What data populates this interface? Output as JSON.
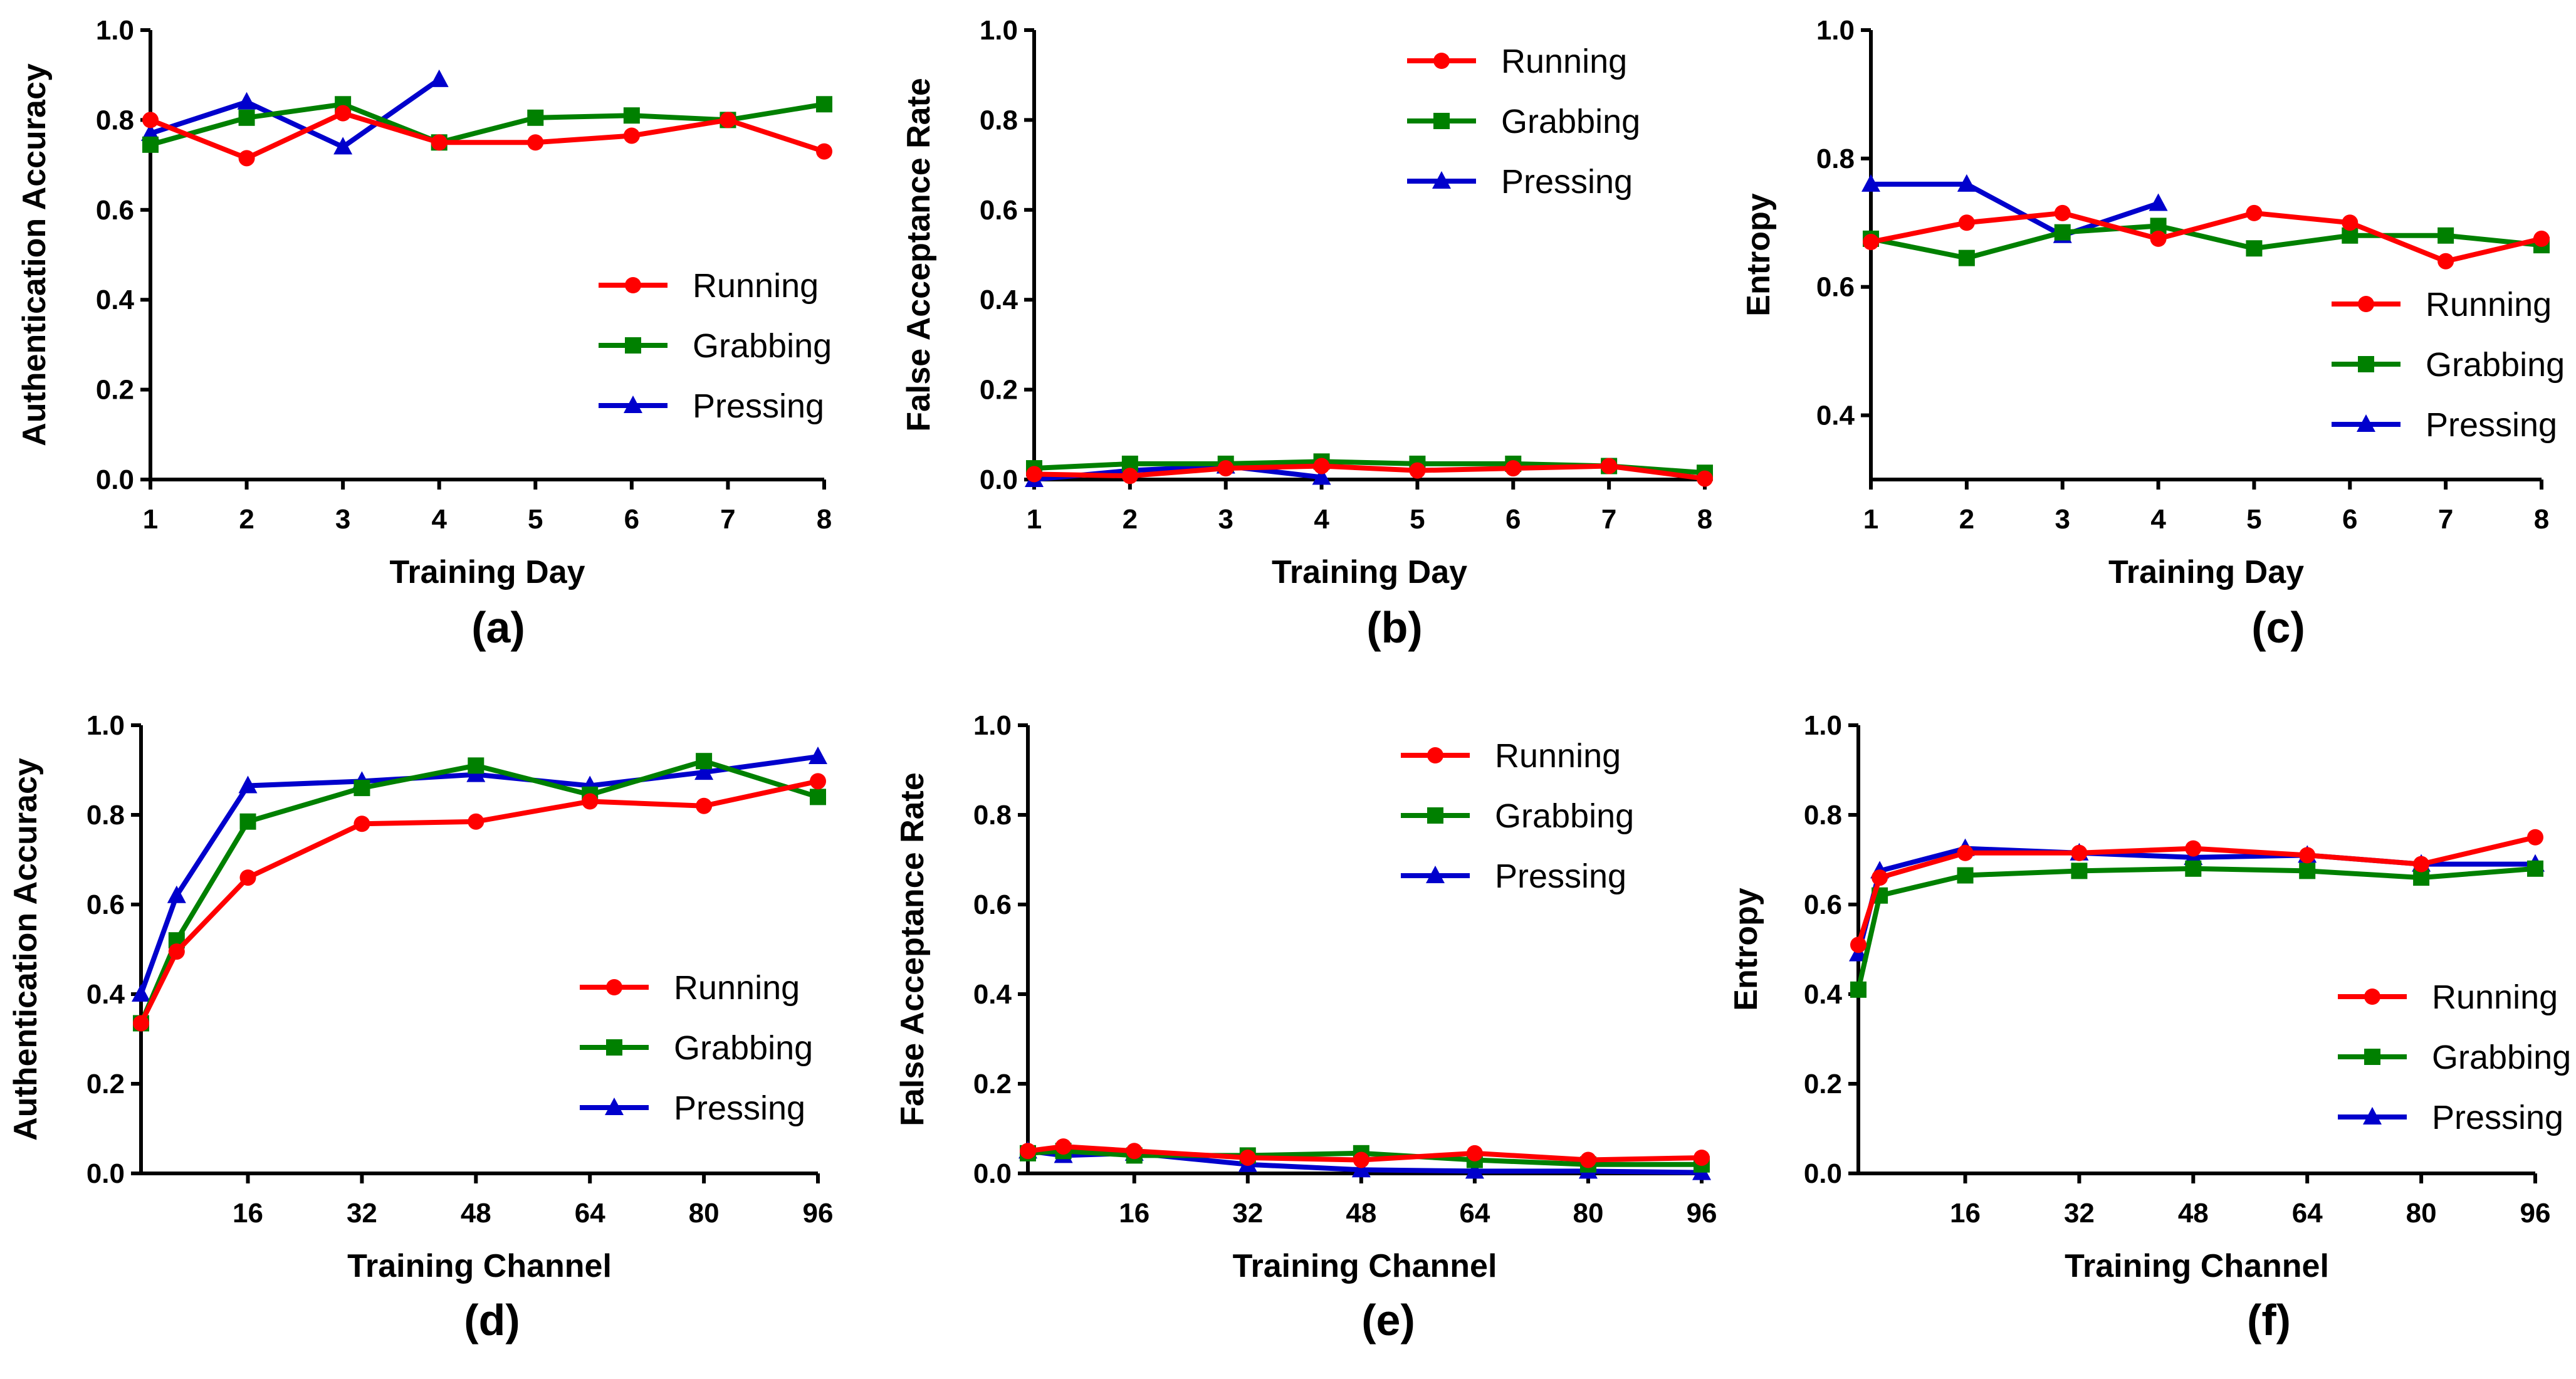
{
  "figure": {
    "series_names": [
      "Running",
      "Grabbing",
      "Pressing"
    ],
    "colors": {
      "Running": "#ff0000",
      "Grabbing": "#008000",
      "Pressing": "#0000cc"
    },
    "markers": {
      "Running": "circle",
      "Grabbing": "square",
      "Pressing": "triangle"
    }
  },
  "chart_data": [
    {
      "type": "line",
      "panel_label": "(a)",
      "xlabel": "Training Day",
      "ylabel": "Authentication Accuracy",
      "xlim": [
        1,
        8
      ],
      "ylim": [
        0,
        1
      ],
      "xticks": [
        1,
        2,
        3,
        4,
        5,
        6,
        7,
        8
      ],
      "xtick_labels": [
        "1",
        "2",
        "3",
        "4",
        "5",
        "6",
        "7",
        "8"
      ],
      "yticks": [
        0,
        0.2,
        0.4,
        0.6,
        0.8,
        1.0
      ],
      "ytick_labels": [
        "0.0",
        "0.2",
        "0.4",
        "0.6",
        "0.8",
        "1.0"
      ],
      "legend_position": "lower-right",
      "series": [
        {
          "name": "Running",
          "x": [
            1,
            2,
            3,
            4,
            5,
            6,
            7,
            8
          ],
          "values": [
            0.8,
            0.715,
            0.815,
            0.75,
            0.75,
            0.765,
            0.8,
            0.73
          ]
        },
        {
          "name": "Grabbing",
          "x": [
            1,
            2,
            3,
            4,
            5,
            6,
            7,
            8
          ],
          "values": [
            0.745,
            0.805,
            0.835,
            0.75,
            0.805,
            0.81,
            0.8,
            0.835
          ]
        },
        {
          "name": "Pressing",
          "x": [
            1,
            2,
            3,
            4
          ],
          "values": [
            0.77,
            0.84,
            0.74,
            0.89
          ]
        }
      ]
    },
    {
      "type": "line",
      "panel_label": "(b)",
      "xlabel": "Training Day",
      "ylabel": "False Acceptance Rate",
      "xlim": [
        1,
        8
      ],
      "ylim": [
        0,
        1
      ],
      "xticks": [
        1,
        2,
        3,
        4,
        5,
        6,
        7,
        8
      ],
      "xtick_labels": [
        "1",
        "2",
        "3",
        "4",
        "5",
        "6",
        "7",
        "8"
      ],
      "yticks": [
        0,
        0.2,
        0.4,
        0.6,
        0.8,
        1.0
      ],
      "ytick_labels": [
        "0.0",
        "0.2",
        "0.4",
        "0.6",
        "0.8",
        "1.0"
      ],
      "legend_position": "top-right",
      "series": [
        {
          "name": "Running",
          "x": [
            1,
            2,
            3,
            4,
            5,
            6,
            7,
            8
          ],
          "values": [
            0.012,
            0.008,
            0.025,
            0.03,
            0.02,
            0.025,
            0.03,
            0.002
          ]
        },
        {
          "name": "Grabbing",
          "x": [
            1,
            2,
            3,
            4,
            5,
            6,
            7,
            8
          ],
          "values": [
            0.025,
            0.035,
            0.035,
            0.04,
            0.035,
            0.035,
            0.03,
            0.015
          ]
        },
        {
          "name": "Pressing",
          "x": [
            1,
            2,
            3,
            4
          ],
          "values": [
            0.0,
            0.02,
            0.03,
            0.005
          ]
        }
      ]
    },
    {
      "type": "line",
      "panel_label": "(c)",
      "xlabel": "Training Day",
      "ylabel": "Entropy",
      "xlim": [
        1,
        8
      ],
      "ylim": [
        0.3,
        1.0
      ],
      "xticks": [
        1,
        2,
        3,
        4,
        5,
        6,
        7,
        8
      ],
      "xtick_labels": [
        "1",
        "2",
        "3",
        "4",
        "5",
        "6",
        "7",
        "8"
      ],
      "yticks": [
        0.4,
        0.6,
        0.8,
        1.0
      ],
      "ytick_labels": [
        "0.4",
        "0.6",
        "0.8",
        "1.0"
      ],
      "legend_position": "lower-right",
      "series": [
        {
          "name": "Running",
          "x": [
            1,
            2,
            3,
            4,
            5,
            6,
            7,
            8
          ],
          "values": [
            0.67,
            0.7,
            0.715,
            0.675,
            0.715,
            0.7,
            0.64,
            0.675
          ]
        },
        {
          "name": "Grabbing",
          "x": [
            1,
            2,
            3,
            4,
            5,
            6,
            7,
            8
          ],
          "values": [
            0.675,
            0.645,
            0.685,
            0.695,
            0.66,
            0.68,
            0.68,
            0.665
          ]
        },
        {
          "name": "Pressing",
          "x": [
            1,
            2,
            3,
            4
          ],
          "values": [
            0.76,
            0.76,
            0.68,
            0.73
          ]
        }
      ]
    },
    {
      "type": "line",
      "panel_label": "(d)",
      "xlabel": "Training Channel",
      "ylabel": "Authentication Accuracy",
      "xlim": [
        1,
        96
      ],
      "ylim": [
        0,
        1
      ],
      "xticks": [
        16,
        32,
        48,
        64,
        80,
        96
      ],
      "xtick_labels": [
        "16",
        "32",
        "48",
        "64",
        "80",
        "96"
      ],
      "yticks": [
        0,
        0.2,
        0.4,
        0.6,
        0.8,
        1.0
      ],
      "ytick_labels": [
        "0.0",
        "0.2",
        "0.4",
        "0.6",
        "0.8",
        "1.0"
      ],
      "legend_position": "lower-right",
      "series": [
        {
          "name": "Running",
          "x": [
            1,
            6,
            16,
            32,
            48,
            64,
            80,
            96
          ],
          "values": [
            0.335,
            0.495,
            0.66,
            0.78,
            0.785,
            0.83,
            0.82,
            0.875
          ]
        },
        {
          "name": "Grabbing",
          "x": [
            1,
            6,
            16,
            32,
            48,
            64,
            80,
            96
          ],
          "values": [
            0.335,
            0.52,
            0.785,
            0.86,
            0.91,
            0.845,
            0.92,
            0.84
          ]
        },
        {
          "name": "Pressing",
          "x": [
            1,
            6,
            16,
            32,
            48,
            64,
            80,
            96
          ],
          "values": [
            0.4,
            0.62,
            0.865,
            0.875,
            0.89,
            0.865,
            0.895,
            0.93
          ]
        }
      ]
    },
    {
      "type": "line",
      "panel_label": "(e)",
      "xlabel": "Training Channel",
      "ylabel": "False Acceptance Rate",
      "xlim": [
        1,
        96
      ],
      "ylim": [
        0,
        1
      ],
      "xticks": [
        16,
        32,
        48,
        64,
        80,
        96
      ],
      "xtick_labels": [
        "16",
        "32",
        "48",
        "64",
        "80",
        "96"
      ],
      "yticks": [
        0,
        0.2,
        0.4,
        0.6,
        0.8,
        1.0
      ],
      "ytick_labels": [
        "0.0",
        "0.2",
        "0.4",
        "0.6",
        "0.8",
        "1.0"
      ],
      "legend_position": "top-right",
      "series": [
        {
          "name": "Running",
          "x": [
            1,
            6,
            16,
            32,
            48,
            64,
            80,
            96
          ],
          "values": [
            0.05,
            0.06,
            0.05,
            0.035,
            0.03,
            0.045,
            0.03,
            0.035
          ]
        },
        {
          "name": "Grabbing",
          "x": [
            1,
            6,
            16,
            32,
            48,
            64,
            80,
            96
          ],
          "values": [
            0.045,
            0.05,
            0.04,
            0.04,
            0.045,
            0.03,
            0.02,
            0.02
          ]
        },
        {
          "name": "Pressing",
          "x": [
            1,
            6,
            16,
            32,
            48,
            64,
            80,
            96
          ],
          "values": [
            0.05,
            0.04,
            0.045,
            0.02,
            0.008,
            0.005,
            0.005,
            0.002
          ]
        }
      ]
    },
    {
      "type": "line",
      "panel_label": "(f)",
      "xlabel": "Training Channel",
      "ylabel": "Entropy",
      "xlim": [
        1,
        96
      ],
      "ylim": [
        0,
        1
      ],
      "xticks": [
        16,
        32,
        48,
        64,
        80,
        96
      ],
      "xtick_labels": [
        "16",
        "32",
        "48",
        "64",
        "80",
        "96"
      ],
      "yticks": [
        0,
        0.2,
        0.4,
        0.6,
        0.8,
        1.0
      ],
      "ytick_labels": [
        "0.0",
        "0.2",
        "0.4",
        "0.6",
        "0.8",
        "1.0"
      ],
      "legend_position": "lower-right",
      "series": [
        {
          "name": "Running",
          "x": [
            1,
            4,
            16,
            32,
            48,
            64,
            80,
            96
          ],
          "values": [
            0.51,
            0.66,
            0.715,
            0.715,
            0.725,
            0.71,
            0.69,
            0.75
          ]
        },
        {
          "name": "Grabbing",
          "x": [
            1,
            4,
            16,
            32,
            48,
            64,
            80,
            96
          ],
          "values": [
            0.41,
            0.62,
            0.665,
            0.675,
            0.68,
            0.675,
            0.66,
            0.68
          ]
        },
        {
          "name": "Pressing",
          "x": [
            1,
            4,
            16,
            32,
            48,
            64,
            80,
            96
          ],
          "values": [
            0.49,
            0.675,
            0.725,
            0.715,
            0.705,
            0.71,
            0.69,
            0.69
          ]
        }
      ]
    }
  ]
}
